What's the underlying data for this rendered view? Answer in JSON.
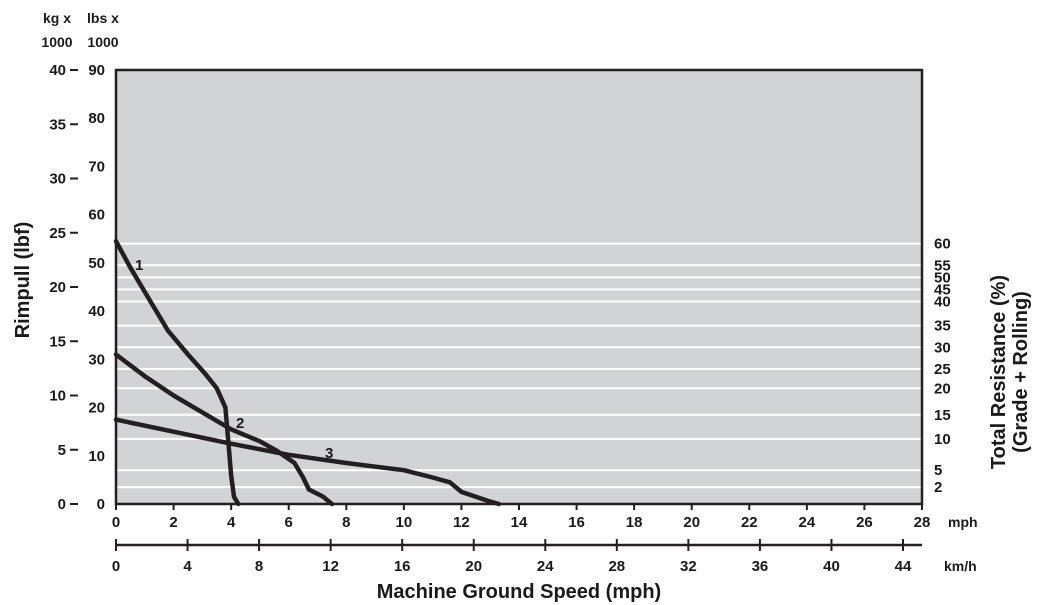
{
  "chart_data": {
    "type": "line",
    "title": "",
    "xlabel": "Machine Ground Speed (mph)",
    "ylabel": "Rimpull (lbf)",
    "y2label": "Total Resistance (%)",
    "y2label_sub": "(Grade + Rolling)",
    "x_unit": "mph",
    "x2_unit": "km/h",
    "kg_header": [
      "kg x",
      "1000"
    ],
    "lbs_header": [
      "lbs x",
      "1000"
    ],
    "xlim": [
      0,
      28
    ],
    "x_ticks": [
      0,
      2,
      4,
      6,
      8,
      10,
      12,
      14,
      16,
      18,
      20,
      22,
      24,
      26,
      28
    ],
    "km_ticks": [
      0,
      4,
      8,
      12,
      16,
      20,
      24,
      28,
      32,
      36,
      40,
      44
    ],
    "lbs_ticks": [
      0,
      10,
      20,
      30,
      40,
      50,
      60,
      70,
      80,
      90
    ],
    "kg_ticks": [
      0,
      5,
      10,
      15,
      20,
      25,
      30,
      35,
      40
    ],
    "resistance_ticks": [
      "60",
      "55",
      "50",
      "45",
      "40",
      "35",
      "30",
      "25",
      "20",
      "15",
      "10",
      "5",
      "2"
    ],
    "resistance_lines_lbs": [
      54,
      49.5,
      47,
      44.5,
      42,
      37,
      32.5,
      28,
      24,
      18.5,
      13.5,
      7,
      3.5
    ],
    "plot_background": "#d1d3d4",
    "line_color": "#231f20",
    "series": [
      {
        "name": "1",
        "points": [
          [
            0,
            54.5
          ],
          [
            0.5,
            49
          ],
          [
            1.2,
            42
          ],
          [
            1.8,
            36
          ],
          [
            2.5,
            31
          ],
          [
            3.1,
            27
          ],
          [
            3.5,
            24
          ],
          [
            3.8,
            20
          ],
          [
            3.9,
            13
          ],
          [
            4.0,
            6
          ],
          [
            4.1,
            1.5
          ],
          [
            4.25,
            0
          ]
        ]
      },
      {
        "name": "2",
        "points": [
          [
            0,
            31
          ],
          [
            1,
            26.5
          ],
          [
            2,
            22.5
          ],
          [
            3,
            19
          ],
          [
            4,
            15.5
          ],
          [
            5,
            13
          ],
          [
            5.6,
            11
          ],
          [
            6.2,
            8.5
          ],
          [
            6.5,
            5.5
          ],
          [
            6.7,
            3
          ],
          [
            7.2,
            1.5
          ],
          [
            7.5,
            0
          ]
        ]
      },
      {
        "name": "3",
        "points": [
          [
            0,
            17.5
          ],
          [
            2,
            15
          ],
          [
            4,
            12.5
          ],
          [
            6,
            10.2
          ],
          [
            8,
            8.5
          ],
          [
            10,
            7
          ],
          [
            11,
            5.5
          ],
          [
            11.6,
            4.5
          ],
          [
            12,
            2.5
          ],
          [
            12.5,
            1.5
          ],
          [
            13,
            0.5
          ],
          [
            13.3,
            0
          ]
        ]
      }
    ]
  }
}
